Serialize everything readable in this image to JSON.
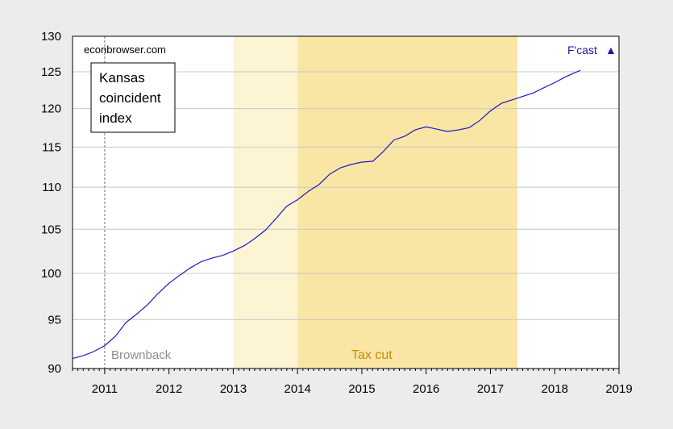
{
  "chart_data": {
    "type": "line",
    "title": "",
    "xlabel": "",
    "ylabel": "",
    "scale": "log",
    "xlim": [
      2010.5,
      2019.0
    ],
    "ylim": [
      90,
      130
    ],
    "y_ticks": [
      90,
      95,
      100,
      105,
      110,
      115,
      120,
      125,
      130
    ],
    "y_tick_labels": [
      "90",
      "95",
      "100",
      "105",
      "110",
      "115",
      "120",
      "125",
      "130"
    ],
    "x_ticks": [
      2011,
      2012,
      2013,
      2014,
      2015,
      2016,
      2017,
      2018,
      2019
    ],
    "x_tick_labels": [
      "2011",
      "2012",
      "2013",
      "2014",
      "2015",
      "2016",
      "2017",
      "2018",
      "2019"
    ],
    "grid": "horizontal",
    "legend_box": [
      "Kansas",
      "coincident",
      "index"
    ],
    "source_note": "econbrowser.com",
    "forecast_note": "F'cast",
    "forecast_marker": "▲",
    "vertical_line": {
      "x": 2011.0,
      "label": "Brownback"
    },
    "shaded_regions": [
      {
        "x0": 2013.0,
        "x1": 2014.0,
        "color": "#fdf4d4",
        "label": ""
      },
      {
        "x0": 2014.0,
        "x1": 2017.42,
        "color": "#f9e6a4",
        "label": "Tax cut"
      }
    ],
    "series": [
      {
        "color": "#1a1acc",
        "x": [
          2010.5,
          2010.67,
          2010.83,
          2011.0,
          2011.17,
          2011.33,
          2011.5,
          2011.67,
          2011.83,
          2012.0,
          2012.17,
          2012.33,
          2012.5,
          2012.67,
          2012.83,
          2013.0,
          2013.17,
          2013.33,
          2013.5,
          2013.67,
          2013.83,
          2014.0,
          2014.17,
          2014.33,
          2014.5,
          2014.67,
          2014.83,
          2015.0,
          2015.17,
          2015.33,
          2015.5,
          2015.67,
          2015.83,
          2016.0,
          2016.17,
          2016.33,
          2016.5,
          2016.67,
          2016.83,
          2017.0,
          2017.17,
          2017.42,
          2017.67,
          2017.83,
          2018.0,
          2018.17,
          2018.4
        ],
        "values": [
          91.0,
          91.3,
          91.7,
          92.3,
          93.3,
          94.7,
          95.6,
          96.6,
          97.8,
          98.9,
          99.8,
          100.6,
          101.3,
          101.7,
          102.0,
          102.5,
          103.1,
          103.9,
          104.9,
          106.3,
          107.7,
          108.5,
          109.5,
          110.3,
          111.6,
          112.4,
          112.8,
          113.1,
          113.2,
          114.4,
          115.9,
          116.4,
          117.2,
          117.6,
          117.3,
          117.0,
          117.2,
          117.5,
          118.4,
          119.7,
          120.7,
          121.4,
          122.1,
          122.8,
          123.5,
          124.3,
          125.2
        ]
      }
    ]
  }
}
